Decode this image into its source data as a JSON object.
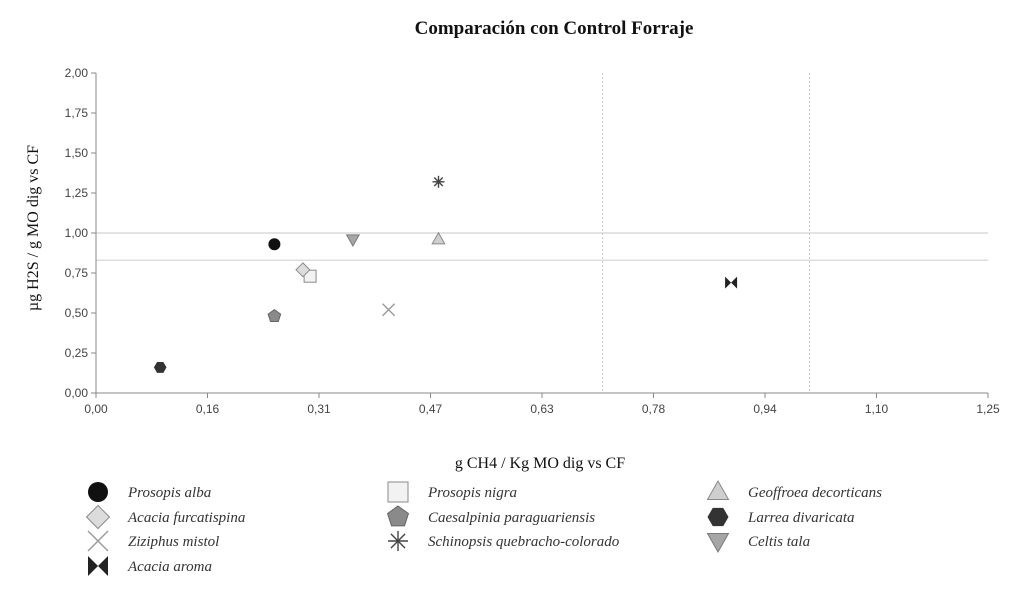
{
  "chart_data": {
    "type": "scatter",
    "title": "Comparación con Control Forraje",
    "xlabel": "g CH4 / Kg MO dig vs CF",
    "ylabel": "µg H2S / g MO dig vs CF",
    "xlim": [
      0,
      1.25
    ],
    "ylim": [
      0,
      2.0
    ],
    "x_ticks": [
      "0,00",
      "0,16",
      "0,31",
      "0,47",
      "0,63",
      "0,78",
      "0,94",
      "1,10",
      "1,25"
    ],
    "y_ticks": [
      "0,00",
      "0,25",
      "0,50",
      "0,75",
      "1,00",
      "1,25",
      "1,50",
      "1,75",
      "2,00"
    ],
    "reference_lines": {
      "x": [
        0.71,
        1.0
      ],
      "y": [
        0.83,
        1.0
      ]
    },
    "grid": false,
    "legend_position": "bottom",
    "series": [
      {
        "name": "Prosopis alba",
        "marker": "circle",
        "color": "#111111",
        "x": 0.25,
        "y": 0.93
      },
      {
        "name": "Prosopis nigra",
        "marker": "square",
        "color": "#f2f2f2",
        "x": 0.3,
        "y": 0.73
      },
      {
        "name": "Geoffroea decorticans",
        "marker": "triangle-up",
        "color": "#cfcfcf",
        "x": 0.48,
        "y": 0.96
      },
      {
        "name": "Acacia furcatispina",
        "marker": "diamond",
        "color": "#dcdcdc",
        "x": 0.29,
        "y": 0.77
      },
      {
        "name": "Caesalpinia paraguariensis",
        "marker": "pentagon",
        "color": "#8a8a8a",
        "x": 0.25,
        "y": 0.48
      },
      {
        "name": "Larrea divaricata",
        "marker": "hexagon",
        "color": "#333333",
        "x": 0.09,
        "y": 0.16
      },
      {
        "name": "Ziziphus mistol",
        "marker": "x",
        "color": "#9a9a9a",
        "x": 0.41,
        "y": 0.52
      },
      {
        "name": "Schinopsis quebracho-colorado",
        "marker": "asterisk",
        "color": "#444444",
        "x": 0.48,
        "y": 1.32
      },
      {
        "name": "Celtis tala",
        "marker": "triangle-down",
        "color": "#a6a6a6",
        "x": 0.36,
        "y": 0.96
      },
      {
        "name": "Acacia aroma",
        "marker": "bowtie",
        "color": "#222222",
        "x": 0.89,
        "y": 0.69
      }
    ]
  }
}
